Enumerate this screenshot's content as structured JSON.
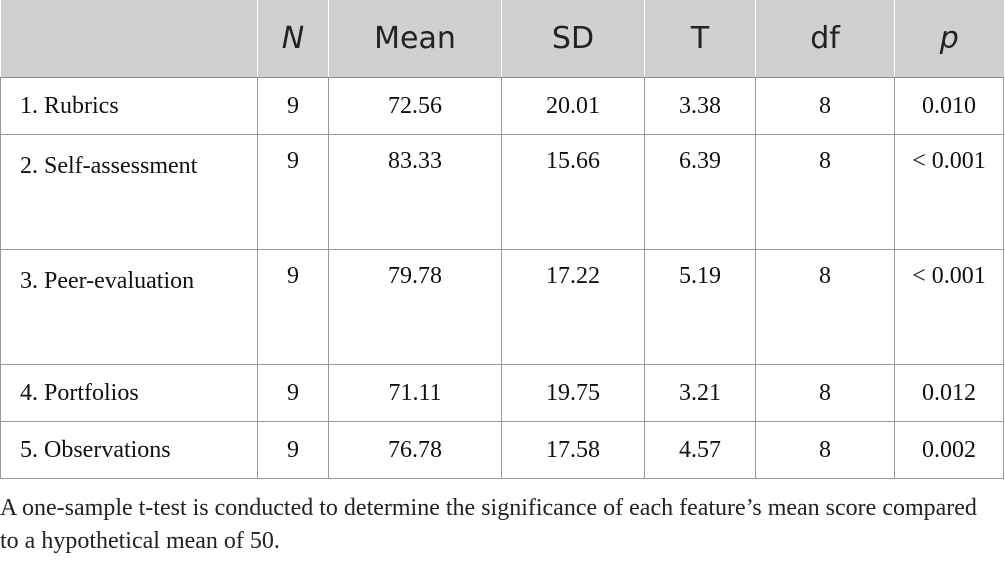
{
  "table": {
    "headers": [
      "",
      "N",
      "Mean",
      "SD",
      "T",
      "df",
      "p"
    ],
    "rows": [
      {
        "feature": "1. Rubrics",
        "n": "9",
        "mean": "72.56",
        "sd": "20.01",
        "t": "3.38",
        "df": "8",
        "p": "0.010"
      },
      {
        "feature": "2. Self-assessment",
        "n": "9",
        "mean": "83.33",
        "sd": "15.66",
        "t": "6.39",
        "df": "8",
        "p": "< 0.001"
      },
      {
        "feature": "3. Peer-evaluation",
        "n": "9",
        "mean": "79.78",
        "sd": "17.22",
        "t": "5.19",
        "df": "8",
        "p": "< 0.001"
      },
      {
        "feature": "4. Portfolios",
        "n": "9",
        "mean": "71.11",
        "sd": "19.75",
        "t": "3.21",
        "df": "8",
        "p": "0.012"
      },
      {
        "feature": "5. Observations",
        "n": "9",
        "mean": "76.78",
        "sd": "17.58",
        "t": "4.57",
        "df": "8",
        "p": "0.002"
      }
    ]
  },
  "footnote": "A one-sample t-test is conducted to determine the significance of each feature’s mean score compared to a hypothetical mean of 50."
}
